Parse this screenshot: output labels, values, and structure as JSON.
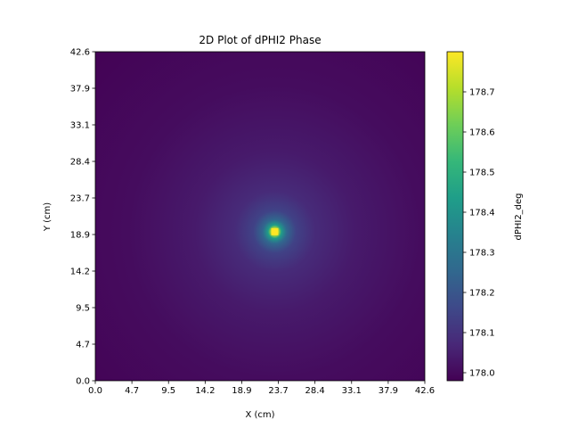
{
  "chart_data": {
    "type": "heatmap",
    "title": "2D Plot of dPHI2 Phase",
    "xlabel": "X (cm)",
    "ylabel": "Y (cm)",
    "colorbar_label": "dPHI2_deg",
    "colormap": "viridis",
    "xlim": [
      0.0,
      42.6
    ],
    "ylim": [
      0.0,
      42.6
    ],
    "x_ticks": [
      "0.0",
      "4.7",
      "9.5",
      "14.2",
      "18.9",
      "23.7",
      "28.4",
      "33.1",
      "37.9",
      "42.6"
    ],
    "y_ticks": [
      "0.0",
      "4.7",
      "9.5",
      "14.2",
      "18.9",
      "23.7",
      "28.4",
      "33.1",
      "37.9",
      "42.6"
    ],
    "colorbar_range": [
      177.98,
      178.8
    ],
    "colorbar_ticks": [
      "178.0",
      "178.1",
      "178.2",
      "178.3",
      "178.4",
      "178.5",
      "178.6",
      "178.7"
    ],
    "peak": {
      "x": 23.2,
      "y": 19.3,
      "value": 178.8
    },
    "background_value": 177.98,
    "grid": false
  }
}
